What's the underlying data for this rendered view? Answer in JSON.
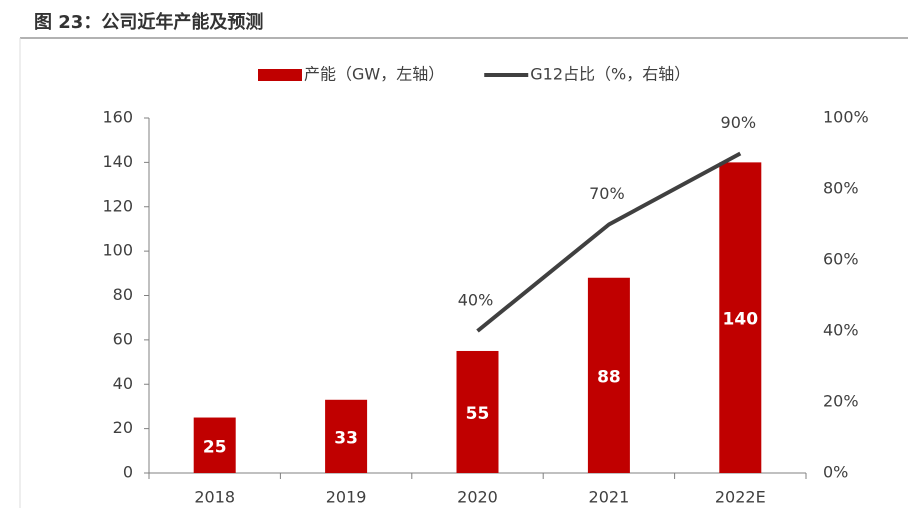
{
  "chart_data": {
    "type": "bar",
    "title": "图 23：公司近年产能及预测",
    "categories": [
      "2018",
      "2019",
      "2020",
      "2021",
      "2022E"
    ],
    "series": [
      {
        "name": "产能（GW，左轴）",
        "type": "bar",
        "color": "#c00000",
        "values": [
          25,
          33,
          55,
          88,
          140
        ]
      },
      {
        "name": "G12占比（%，右轴）",
        "type": "line",
        "axis": "y2",
        "color": "#404040",
        "values": [
          null,
          null,
          40,
          70,
          90
        ],
        "value_labels": [
          null,
          null,
          "40%",
          "70%",
          "90%"
        ]
      }
    ],
    "ylim": [
      0,
      160
    ],
    "yticks": [
      0,
      20,
      40,
      60,
      80,
      100,
      120,
      140,
      160
    ],
    "y2lim": [
      0,
      100
    ],
    "y2ticks": [
      {
        "value": 0,
        "label": "0%"
      },
      {
        "value": 20,
        "label": "20%"
      },
      {
        "value": 40,
        "label": "40%"
      },
      {
        "value": 60,
        "label": "60%"
      },
      {
        "value": 80,
        "label": "80%"
      },
      {
        "value": 100,
        "label": "100%"
      }
    ],
    "legend": "top",
    "grid": false
  }
}
